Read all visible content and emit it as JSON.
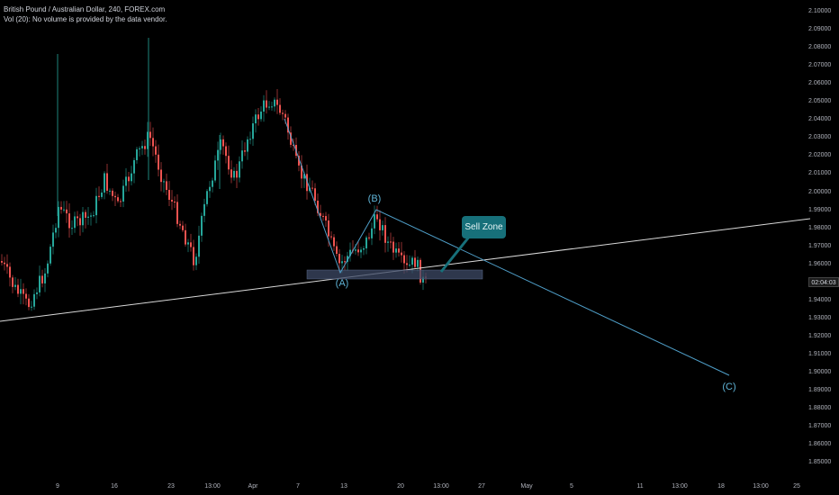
{
  "legend": {
    "symbol_line": "British Pound / Australian Dollar, 240, FOREX.com",
    "volume_line": "Vol (20): No volume is provided by the data vendor."
  },
  "price_axis": {
    "labels": [
      "2.10000",
      "2.09000",
      "2.08000",
      "2.07000",
      "2.06000",
      "2.05000",
      "2.04000",
      "2.03000",
      "2.02000",
      "2.01000",
      "2.00000",
      "1.99000",
      "1.98000",
      "1.97000",
      "1.96000",
      "1.95000",
      "1.94000",
      "1.93000",
      "1.92000",
      "1.91000",
      "1.90000",
      "1.89000",
      "1.88000",
      "1.87000",
      "1.86000",
      "1.85000"
    ],
    "last_price": "02:04:03"
  },
  "time_axis": {
    "labels": [
      "9",
      "16",
      "23",
      "13:00",
      "Apr",
      "7",
      "13",
      "20",
      "13:00",
      "27",
      "May",
      "5",
      "11",
      "13:00",
      "18",
      "13:00",
      "25"
    ]
  },
  "annotations": {
    "wave_a": "(A)",
    "wave_b": "(B)",
    "wave_c": "(C)",
    "callout": "Sell Zone"
  },
  "colors": {
    "background": "#000000",
    "up_candle": "#26a69a",
    "down_candle": "#ef5350",
    "wave_line": "#4f9fc9",
    "trend_line": "#d9d9d9",
    "zone_fill": "#3d4a66",
    "callout_bg": "#17707a"
  }
}
